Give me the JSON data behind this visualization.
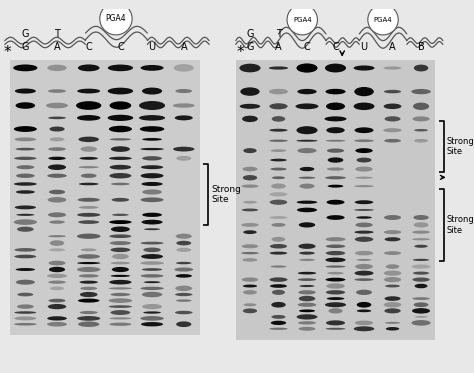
{
  "bg_color": "#e8e8e8",
  "gel_bg_left": "#d8d8d8",
  "gel_bg_right": "#d0d0d0",
  "band_dark": "#1a1a1a",
  "left_labels_r1": [
    "G",
    "T",
    "",
    "",
    "",
    ""
  ],
  "left_labels_r2": [
    "G",
    "A",
    "C",
    "C",
    "U",
    "A"
  ],
  "right_labels_r1": [
    "G",
    "T",
    "",
    "",
    "",
    "",
    ""
  ],
  "right_labels_r2": [
    "G",
    "A",
    "C",
    "C",
    "U",
    "A",
    "B"
  ],
  "strong_site_left": "Strong\nSite",
  "strong_site_right1": "Strong\nSite",
  "strong_site_right2": "Strong\nSite"
}
